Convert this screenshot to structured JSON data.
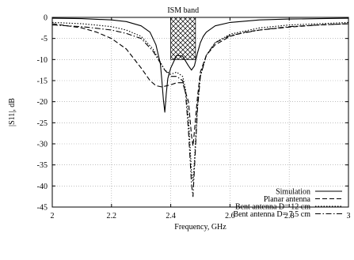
{
  "chart_data": {
    "type": "line",
    "title": "",
    "xlabel": "Frequency, GHz",
    "ylabel": "|S11|, dB",
    "xlim": [
      2,
      3
    ],
    "ylim": [
      -45,
      0
    ],
    "x_ticks": [
      "2",
      "2.2",
      "2.4",
      "2.6",
      "2.8",
      "3"
    ],
    "y_ticks": [
      "0",
      "-5",
      "-10",
      "-15",
      "-20",
      "-25",
      "-30",
      "-35",
      "-40",
      "-45"
    ],
    "grid": true,
    "legend_position": "bottom-right",
    "annotation": {
      "text": "ISM band",
      "x_range": [
        2.4,
        2.4835
      ],
      "y_range": [
        -10,
        0
      ]
    },
    "series": [
      {
        "name": "Simulation",
        "style": "solid",
        "x": [
          2.0,
          2.1,
          2.2,
          2.25,
          2.3,
          2.33,
          2.35,
          2.365,
          2.37,
          2.375,
          2.38,
          2.385,
          2.39,
          2.4,
          2.42,
          2.44,
          2.46,
          2.47,
          2.48,
          2.49,
          2.5,
          2.51,
          2.52,
          2.55,
          2.6,
          2.7,
          2.8,
          2.9,
          3.0
        ],
        "y": [
          -0.2,
          -0.3,
          -0.6,
          -1.0,
          -2.0,
          -3.5,
          -6.5,
          -11.0,
          -15.0,
          -19.5,
          -22.5,
          -18.0,
          -14.5,
          -12.0,
          -9.0,
          -9.2,
          -11.5,
          -12.5,
          -11.5,
          -8.5,
          -6.0,
          -4.5,
          -3.5,
          -2.0,
          -1.2,
          -0.6,
          -0.4,
          -0.3,
          -0.2
        ]
      },
      {
        "name": "Planar antenna",
        "style": "dashed",
        "x": [
          2.0,
          2.1,
          2.15,
          2.2,
          2.25,
          2.3,
          2.33,
          2.35,
          2.37,
          2.4,
          2.42,
          2.44,
          2.46,
          2.47,
          2.475,
          2.48,
          2.49,
          2.5,
          2.52,
          2.55,
          2.6,
          2.65,
          2.7,
          2.8,
          2.9,
          3.0
        ],
        "y": [
          -1.5,
          -2.5,
          -3.5,
          -5.0,
          -7.5,
          -12.0,
          -15.0,
          -16.2,
          -16.5,
          -16.0,
          -15.5,
          -15.5,
          -20.0,
          -28.0,
          -30.5,
          -27.0,
          -19.0,
          -13.0,
          -9.0,
          -6.5,
          -4.5,
          -3.5,
          -3.0,
          -2.3,
          -1.8,
          -1.5
        ]
      },
      {
        "name": "Bent antenna D= 12 cm",
        "style": "dotted",
        "x": [
          2.0,
          2.1,
          2.2,
          2.25,
          2.3,
          2.34,
          2.38,
          2.4,
          2.42,
          2.44,
          2.45,
          2.46,
          2.47,
          2.475,
          2.48,
          2.49,
          2.5,
          2.52,
          2.55,
          2.6,
          2.7,
          2.8,
          2.9,
          3.0
        ],
        "y": [
          -1.2,
          -1.5,
          -2.2,
          -3.0,
          -4.5,
          -7.5,
          -12.5,
          -13.5,
          -13.0,
          -14.0,
          -17.0,
          -24.0,
          -36.5,
          -39.0,
          -34.0,
          -21.0,
          -14.0,
          -9.0,
          -6.0,
          -4.0,
          -2.5,
          -1.8,
          -1.5,
          -1.2
        ]
      },
      {
        "name": "Bent antenna D= 7.5 cm",
        "style": "dashdot",
        "x": [
          2.0,
          2.1,
          2.2,
          2.25,
          2.3,
          2.34,
          2.38,
          2.4,
          2.42,
          2.44,
          2.45,
          2.46,
          2.47,
          2.475,
          2.48,
          2.49,
          2.5,
          2.52,
          2.55,
          2.6,
          2.7,
          2.8,
          2.9,
          3.0
        ],
        "y": [
          -1.8,
          -2.2,
          -3.0,
          -3.8,
          -5.0,
          -8.0,
          -12.5,
          -14.0,
          -14.0,
          -15.0,
          -18.0,
          -27.0,
          -39.5,
          -42.5,
          -36.0,
          -22.0,
          -14.0,
          -9.0,
          -6.0,
          -4.3,
          -3.0,
          -2.2,
          -1.8,
          -1.5
        ]
      }
    ]
  }
}
